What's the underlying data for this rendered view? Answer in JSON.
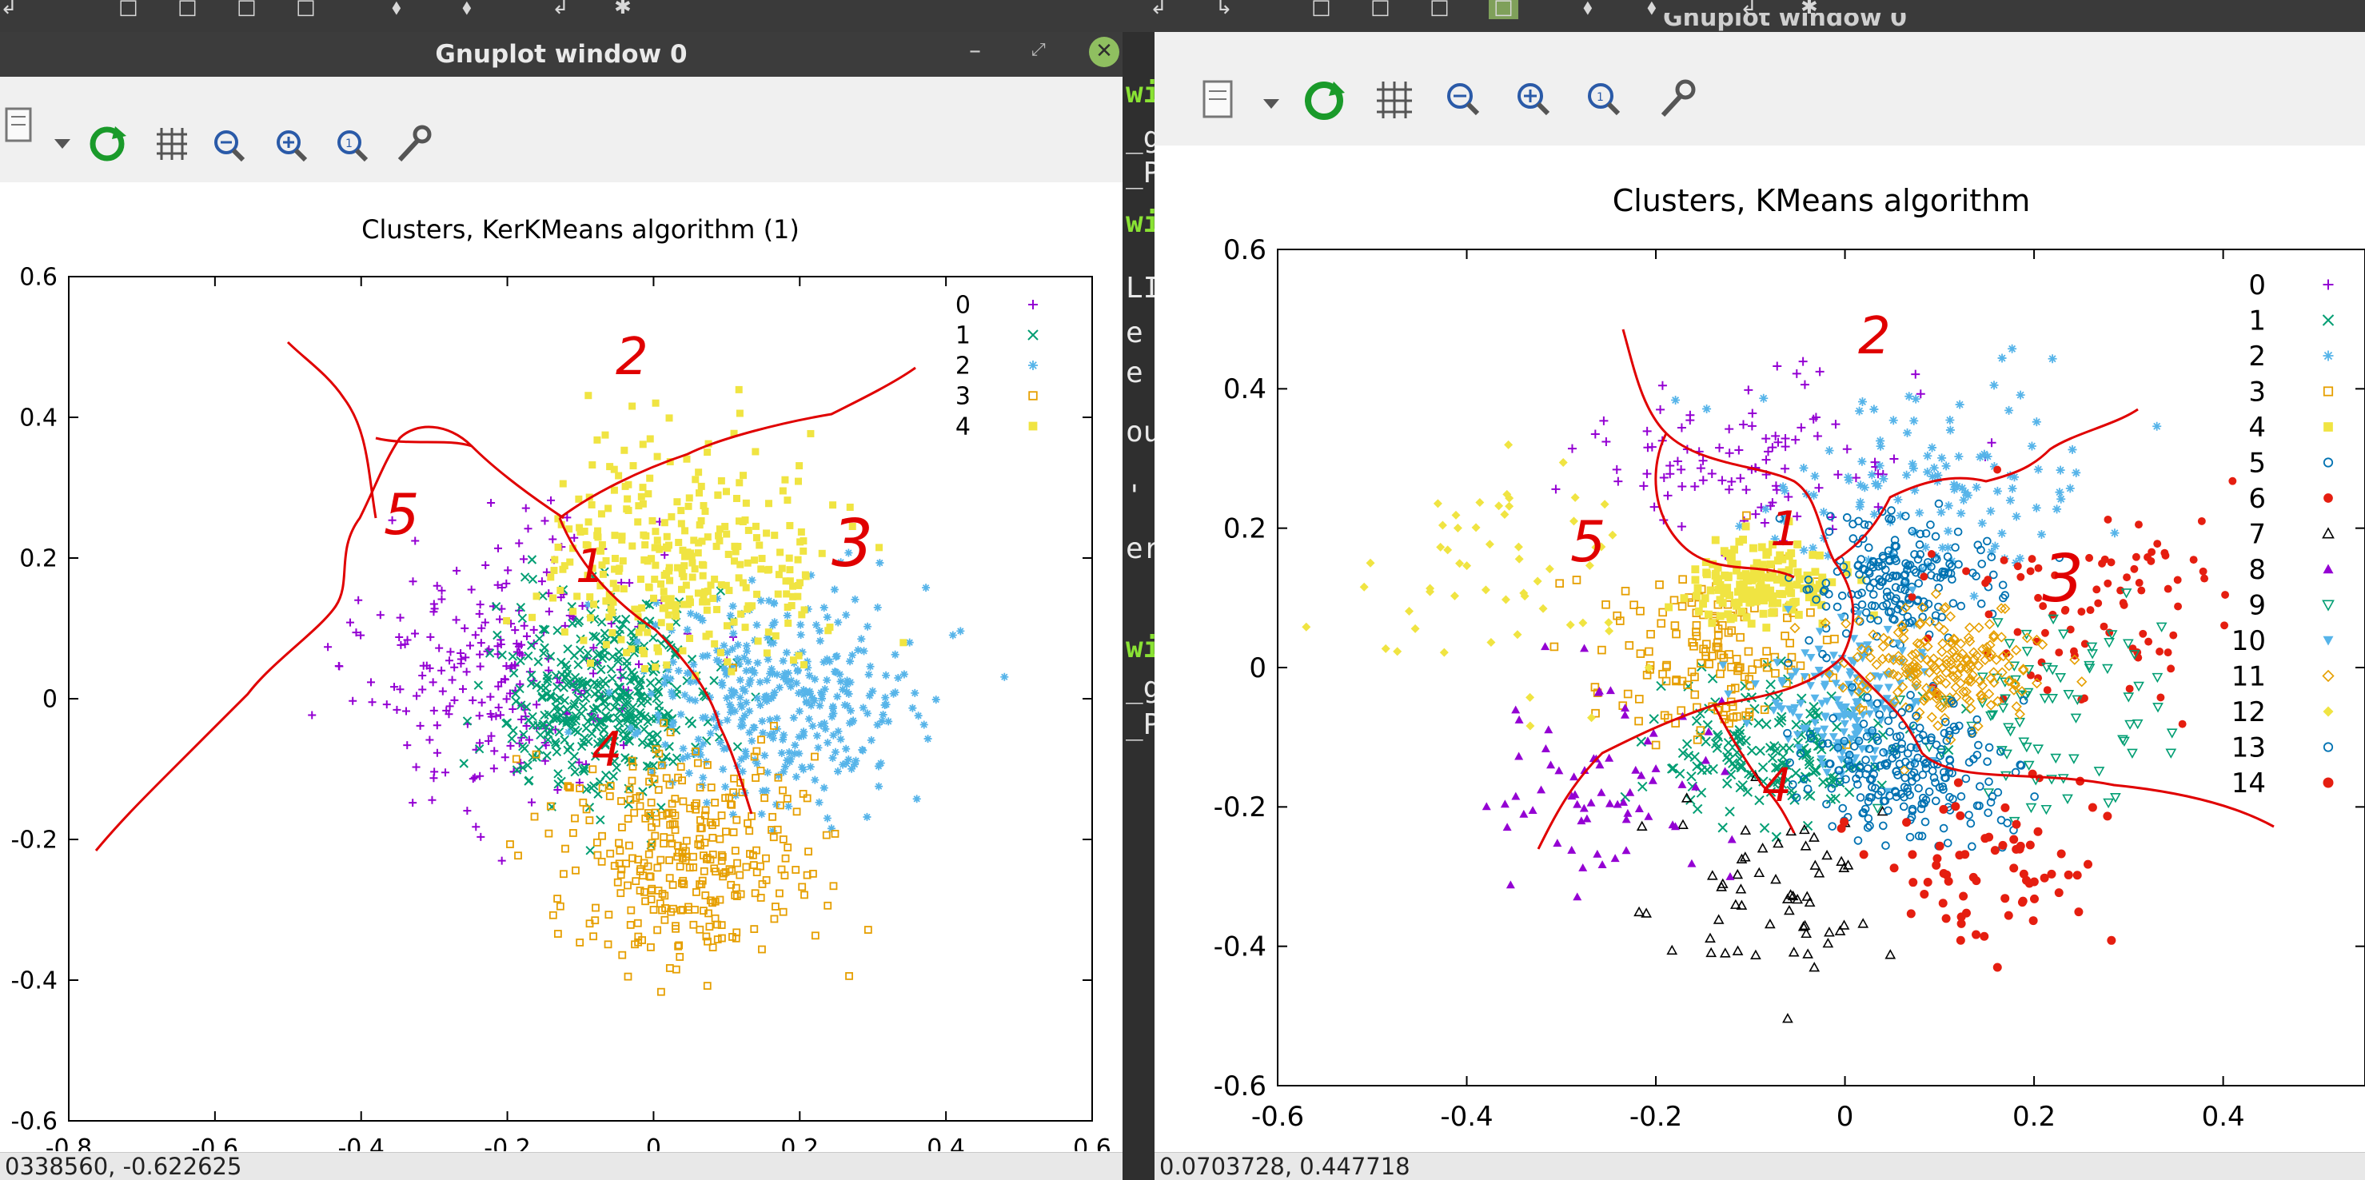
{
  "top_bar_glyphs": [
    "↲",
    "□",
    "□",
    "□",
    "□",
    "⬧",
    "⬧",
    "↲",
    "✱"
  ],
  "top_bar_glyphs_right": [
    "↲",
    "↳",
    "□",
    "□",
    "□",
    "□",
    "⬧",
    "⬧",
    "↲",
    "✱"
  ],
  "colors": {
    "series": [
      "#9400d3",
      "#009e73",
      "#56b4e9",
      "#e69f00",
      "#f0e442",
      "#0072b2",
      "#e51e10",
      "#000000",
      "#9400d3",
      "#009e73",
      "#56b4e9",
      "#e69f00",
      "#f0e442",
      "#0072b2",
      "#e51e10"
    ],
    "annotation": "#e00000",
    "terminal_prompt": "#8ae234"
  },
  "terminal": {
    "lines": [
      {
        "text": "wi",
        "green": true
      },
      {
        "text": "_g",
        "green": false
      },
      {
        "text": "_P",
        "green": false
      },
      {
        "text": "wi",
        "green": true
      },
      {
        "text": "LI",
        "green": false
      },
      {
        "text": "e",
        "green": false
      },
      {
        "text": "e",
        "green": false
      },
      {
        "text": "ou",
        "green": false
      },
      {
        "text": "'",
        "green": false
      },
      {
        "text": "er",
        "green": false
      },
      {
        "text": "wi",
        "green": true
      },
      {
        "text": "_g",
        "green": false
      },
      {
        "text": "_P",
        "green": false
      }
    ]
  },
  "left_window": {
    "title": "Gnuplot window 0",
    "status": "0338560, -0.622625",
    "toolbar_icons": [
      "export-icon",
      "dropdown-arrow-icon",
      "replot-icon",
      "grid-icon",
      "zoom-out-icon",
      "zoom-in-icon",
      "zoom-reset-icon",
      "settings-wrench-icon"
    ]
  },
  "right_window": {
    "title": "Gnuplot window 0",
    "status": "0.0703728, 0.447718",
    "toolbar_icons": [
      "export-icon",
      "dropdown-arrow-icon",
      "replot-icon",
      "grid-icon",
      "zoom-out-icon",
      "zoom-in-icon",
      "zoom-reset-icon",
      "settings-wrench-icon"
    ]
  },
  "chart_data": [
    {
      "type": "scatter",
      "title": "Clusters, KerKMeans algorithm (1)",
      "xlabel": "",
      "ylabel": "",
      "xlim": [
        -0.8,
        0.6
      ],
      "ylim": [
        -0.6,
        0.6
      ],
      "xticks": [
        "-0.8",
        "-0.6",
        "-0.4",
        "-0.2",
        "0",
        "0.2",
        "0.4",
        "0.6"
      ],
      "yticks": [
        "0.6",
        "0.4",
        "0.2",
        "0",
        "-0.2",
        "-0.4",
        "-0.6"
      ],
      "grid": false,
      "legend": "top-right",
      "series": [
        {
          "name": "0",
          "marker": "plus",
          "center": [
            -0.21,
            0.05
          ],
          "spread": [
            0.1,
            0.1
          ],
          "count": 240
        },
        {
          "name": "1",
          "marker": "cross",
          "center": [
            -0.07,
            0.0
          ],
          "spread": [
            0.07,
            0.07
          ],
          "count": 420
        },
        {
          "name": "2",
          "marker": "asterisk",
          "center": [
            0.17,
            0.0
          ],
          "spread": [
            0.1,
            0.08
          ],
          "count": 360
        },
        {
          "name": "3",
          "marker": "open-square",
          "center": [
            0.04,
            -0.22
          ],
          "spread": [
            0.09,
            0.08
          ],
          "count": 320
        },
        {
          "name": "4",
          "marker": "filled-square",
          "center": [
            0.04,
            0.2
          ],
          "spread": [
            0.1,
            0.08
          ],
          "count": 330
        }
      ],
      "annotations": [
        "1",
        "2",
        "3",
        "4",
        "5"
      ]
    },
    {
      "type": "scatter",
      "title": "Clusters, KMeans algorithm",
      "xlabel": "",
      "ylabel": "",
      "xlim": [
        -0.6,
        0.55
      ],
      "ylim": [
        -0.6,
        0.6
      ],
      "xticks": [
        "-0.6",
        "-0.4",
        "-0.2",
        "0",
        "0.2",
        "0.4"
      ],
      "yticks": [
        "0.6",
        "0.4",
        "0.2",
        "0",
        "-0.2",
        "-0.4",
        "-0.6"
      ],
      "grid": false,
      "legend": "top-right",
      "series": [
        {
          "name": "0",
          "marker": "plus",
          "center": [
            -0.1,
            0.3
          ],
          "spread": [
            0.08,
            0.06
          ],
          "count": 100
        },
        {
          "name": "1",
          "marker": "cross",
          "center": [
            -0.07,
            -0.12
          ],
          "spread": [
            0.06,
            0.05
          ],
          "count": 180
        },
        {
          "name": "2",
          "marker": "asterisk",
          "center": [
            0.08,
            0.25
          ],
          "spread": [
            0.1,
            0.08
          ],
          "count": 130
        },
        {
          "name": "3",
          "marker": "open-square",
          "center": [
            -0.15,
            0.02
          ],
          "spread": [
            0.06,
            0.06
          ],
          "count": 150
        },
        {
          "name": "4",
          "marker": "filled-square",
          "center": [
            -0.09,
            0.12
          ],
          "spread": [
            0.04,
            0.03
          ],
          "count": 170
        },
        {
          "name": "5",
          "marker": "open-circle",
          "center": [
            0.05,
            0.12
          ],
          "spread": [
            0.05,
            0.05
          ],
          "count": 200
        },
        {
          "name": "6",
          "marker": "filled-circle",
          "center": [
            0.25,
            0.08
          ],
          "spread": [
            0.08,
            0.08
          ],
          "count": 90
        },
        {
          "name": "7",
          "marker": "open-triangle",
          "center": [
            -0.08,
            -0.32
          ],
          "spread": [
            0.06,
            0.06
          ],
          "count": 60
        },
        {
          "name": "8",
          "marker": "filled-triangle",
          "center": [
            -0.24,
            -0.17
          ],
          "spread": [
            0.06,
            0.07
          ],
          "count": 70
        },
        {
          "name": "9",
          "marker": "open-inv-triangle",
          "center": [
            0.22,
            -0.08
          ],
          "spread": [
            0.06,
            0.08
          ],
          "count": 80
        },
        {
          "name": "10",
          "marker": "filled-inv-triangle",
          "center": [
            0.0,
            -0.05
          ],
          "spread": [
            0.04,
            0.05
          ],
          "count": 170
        },
        {
          "name": "11",
          "marker": "open-diamond",
          "center": [
            0.1,
            0.0
          ],
          "spread": [
            0.05,
            0.04
          ],
          "count": 200
        },
        {
          "name": "12",
          "marker": "filled-diamond",
          "center": [
            -0.37,
            0.13
          ],
          "spread": [
            0.08,
            0.08
          ],
          "count": 55
        },
        {
          "name": "13",
          "marker": "open-pentagon",
          "center": [
            0.07,
            -0.15
          ],
          "spread": [
            0.06,
            0.05
          ],
          "count": 220
        },
        {
          "name": "14",
          "marker": "filled-pentagon",
          "center": [
            0.15,
            -0.3
          ],
          "spread": [
            0.05,
            0.06
          ],
          "count": 70
        }
      ],
      "annotations": [
        "1",
        "2",
        "3",
        "4",
        "5"
      ]
    }
  ]
}
